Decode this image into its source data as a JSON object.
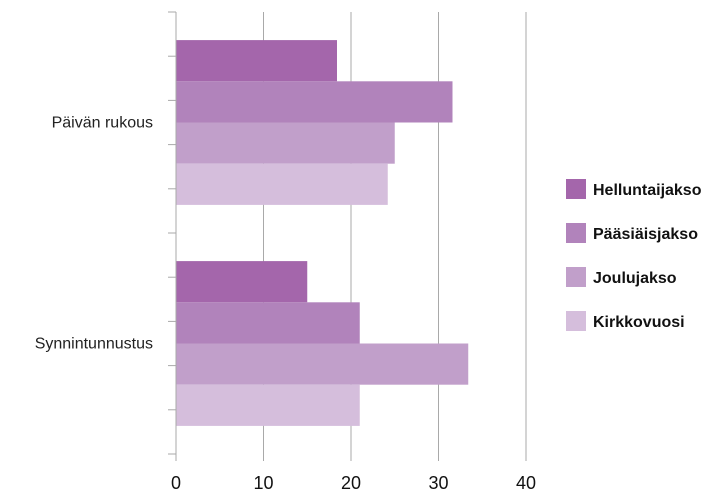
{
  "chart_data": {
    "type": "bar",
    "orientation": "horizontal",
    "categories": [
      "Päivän rukous",
      "Synnintunnustus"
    ],
    "series": [
      {
        "name": "Helluntaijakso",
        "color": "#a466ab",
        "values": [
          18.4,
          15
        ]
      },
      {
        "name": "Pääsiäisjakso",
        "color": "#b183bb",
        "values": [
          31.6,
          21
        ]
      },
      {
        "name": "Joulujakso",
        "color": "#c19fca",
        "values": [
          25,
          33.4
        ]
      },
      {
        "name": "Kirkkovuosi",
        "color": "#d5bedc",
        "values": [
          24.2,
          21
        ]
      }
    ],
    "xlim": [
      0,
      40
    ],
    "xticks": [
      "0",
      "10",
      "20",
      "30",
      "40"
    ],
    "grid": true,
    "legend_position": "right"
  }
}
